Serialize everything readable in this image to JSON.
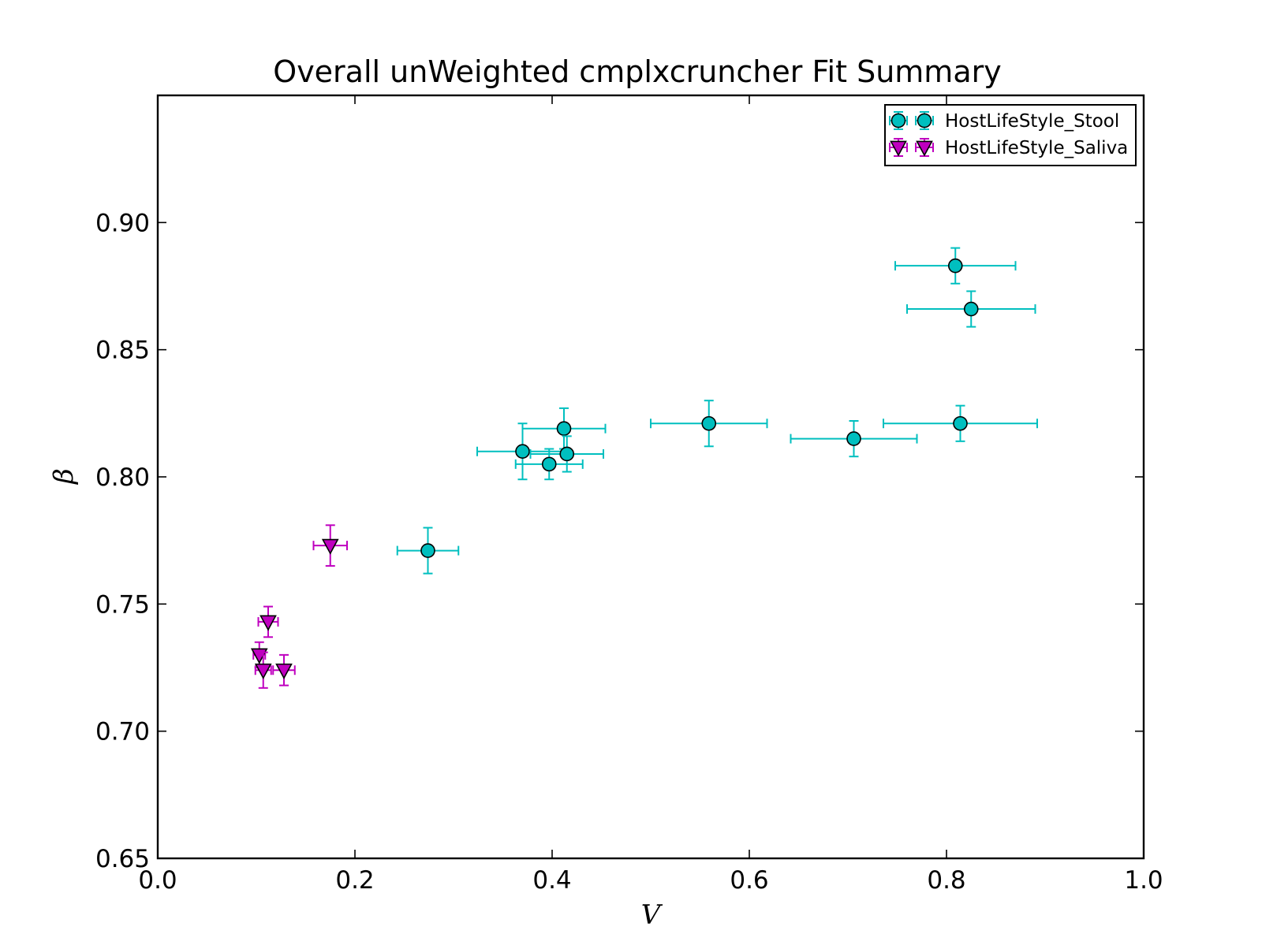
{
  "chart_data": {
    "type": "scatter",
    "title": "Overall unWeighted cmplxcruncher Fit Summary",
    "xlabel": "V",
    "ylabel": "β",
    "xlim": [
      0.0,
      1.0
    ],
    "ylim": [
      0.65,
      0.95
    ],
    "xticks": [
      "0.0",
      "0.2",
      "0.4",
      "0.6",
      "0.8",
      "1.0"
    ],
    "yticks": [
      "0.65",
      "0.70",
      "0.75",
      "0.80",
      "0.85",
      "0.90"
    ],
    "xtick_values": [
      0.0,
      0.2,
      0.4,
      0.6,
      0.8,
      1.0
    ],
    "ytick_values": [
      0.65,
      0.7,
      0.75,
      0.8,
      0.85,
      0.9
    ],
    "grid": false,
    "legend_position": "top-right",
    "series": [
      {
        "name": "HostLifeStyle_Stool",
        "marker": "circle",
        "color": "#00BFBF",
        "points": [
          {
            "x": 0.274,
            "y": 0.771,
            "xerr": 0.031,
            "yerr": 0.009
          },
          {
            "x": 0.37,
            "y": 0.81,
            "xerr": 0.046,
            "yerr": 0.011
          },
          {
            "x": 0.397,
            "y": 0.805,
            "xerr": 0.034,
            "yerr": 0.006
          },
          {
            "x": 0.412,
            "y": 0.819,
            "xerr": 0.042,
            "yerr": 0.008
          },
          {
            "x": 0.415,
            "y": 0.809,
            "xerr": 0.037,
            "yerr": 0.007
          },
          {
            "x": 0.559,
            "y": 0.821,
            "xerr": 0.059,
            "yerr": 0.009
          },
          {
            "x": 0.706,
            "y": 0.815,
            "xerr": 0.064,
            "yerr": 0.007
          },
          {
            "x": 0.809,
            "y": 0.883,
            "xerr": 0.061,
            "yerr": 0.007
          },
          {
            "x": 0.814,
            "y": 0.821,
            "xerr": 0.078,
            "yerr": 0.007
          },
          {
            "x": 0.825,
            "y": 0.866,
            "xerr": 0.065,
            "yerr": 0.007
          }
        ]
      },
      {
        "name": "HostLifeStyle_Saliva",
        "marker": "triangle-down",
        "color": "#BF00BF",
        "points": [
          {
            "x": 0.103,
            "y": 0.73,
            "xerr": 0.006,
            "yerr": 0.005
          },
          {
            "x": 0.107,
            "y": 0.724,
            "xerr": 0.008,
            "yerr": 0.007
          },
          {
            "x": 0.112,
            "y": 0.743,
            "xerr": 0.01,
            "yerr": 0.006
          },
          {
            "x": 0.128,
            "y": 0.724,
            "xerr": 0.011,
            "yerr": 0.006
          },
          {
            "x": 0.175,
            "y": 0.773,
            "xerr": 0.017,
            "yerr": 0.008
          }
        ]
      }
    ]
  }
}
